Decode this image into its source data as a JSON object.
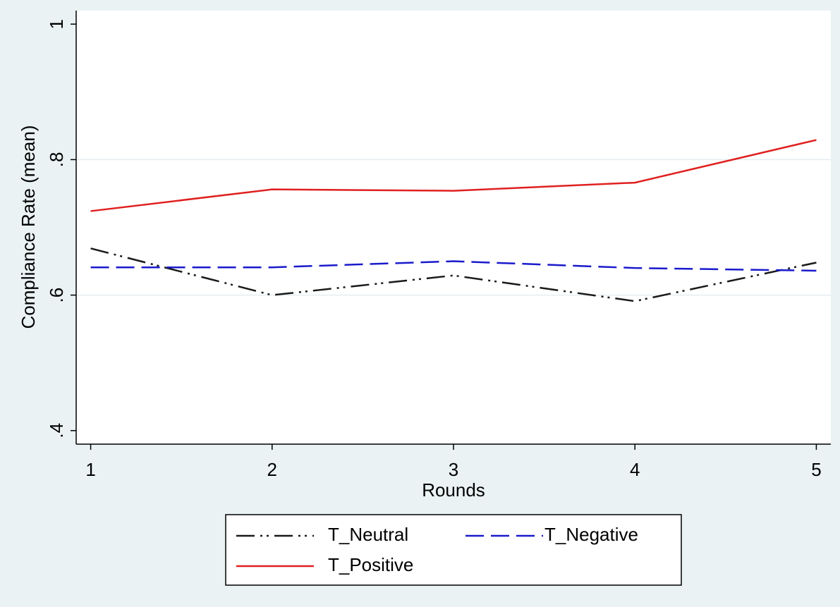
{
  "chart_data": {
    "type": "line",
    "x_label": "Rounds",
    "y_label": "Compliance Rate (mean)",
    "x": [
      1,
      2,
      3,
      4,
      5
    ],
    "series": [
      {
        "name": "T_Neutral",
        "color": "#1a1a1a",
        "line_style": "dash-dot",
        "values": [
          0.669,
          0.6,
          0.629,
          0.591,
          0.648
        ]
      },
      {
        "name": "T_Negative",
        "color": "#1a1acc",
        "line_style": "dash",
        "values": [
          0.641,
          0.641,
          0.65,
          0.64,
          0.636
        ]
      },
      {
        "name": "T_Positive",
        "color": "#e02020",
        "line_style": "solid",
        "values": [
          0.724,
          0.756,
          0.754,
          0.766,
          0.829
        ]
      }
    ],
    "xlim": [
      0.92,
      5.08
    ],
    "xticks": [
      1,
      2,
      3,
      4,
      5
    ],
    "ylim": [
      0.38,
      1.02
    ],
    "yticks": [
      {
        "value": 0.4,
        "label": ".4"
      },
      {
        "value": 0.6,
        "label": ".6"
      },
      {
        "value": 0.8,
        "label": ".8"
      },
      1
    ],
    "grid": true
  }
}
